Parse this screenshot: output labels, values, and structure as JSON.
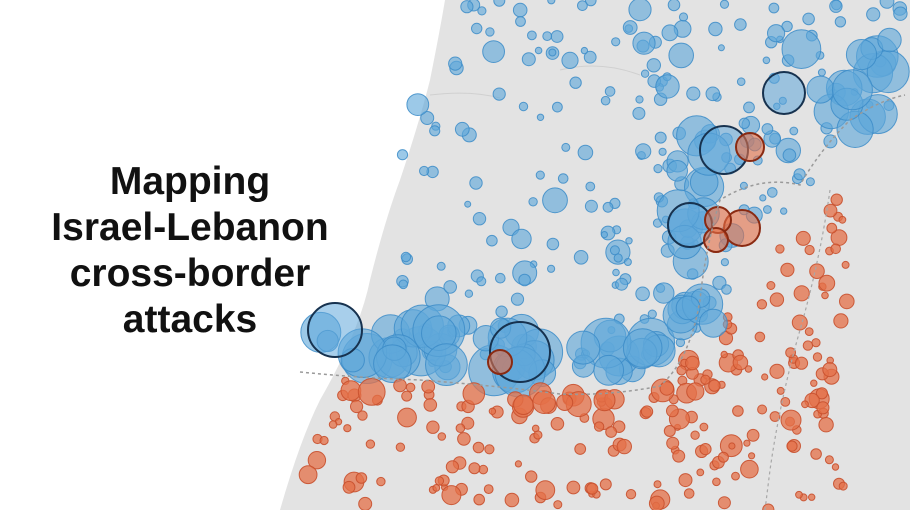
{
  "title_lines": [
    "Mapping",
    "Israel-Lebanon",
    "cross-border",
    "attacks"
  ]
}
